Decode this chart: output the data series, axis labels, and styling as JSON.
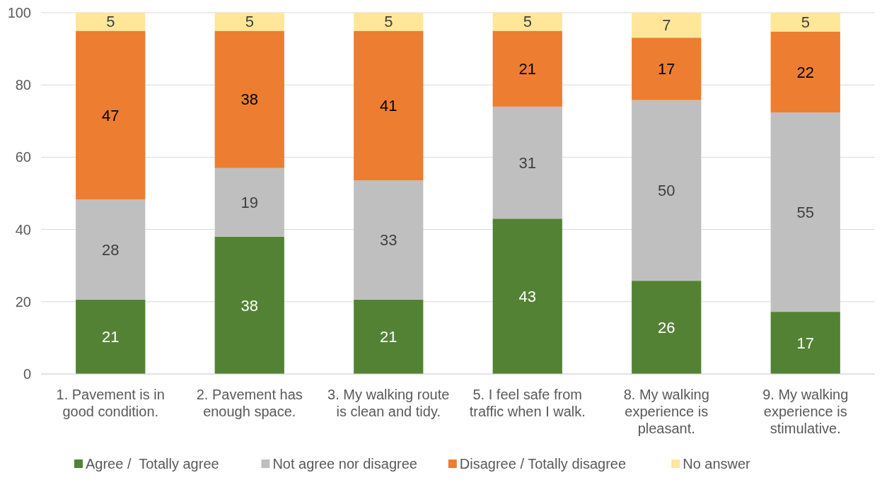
{
  "chart_data": {
    "type": "bar",
    "stacked": true,
    "categories": [
      "1. Pavement is in good condition.",
      "2. Pavement has enough space.",
      "3. My walking route is clean and tidy.",
      "5. I feel safe from traffic when I walk.",
      "8. My walking experience is pleasant.",
      "9. My walking experience is stimulative."
    ],
    "series": [
      {
        "name": "Agree /  Totally agree",
        "color": "#548235",
        "values": [
          20.6,
          38,
          20.6,
          43,
          25.8,
          17.2
        ],
        "value_labels": [
          "21",
          "38",
          "21",
          "43",
          "26",
          "17"
        ]
      },
      {
        "name": "Not agree nor disagree",
        "color": "#bfbfbf",
        "values": [
          27.7,
          19,
          33,
          31,
          50,
          55.2
        ],
        "value_labels": [
          "28",
          "19",
          "33",
          "31",
          "50",
          "55"
        ]
      },
      {
        "name": "Disagree / Totally disagree",
        "color": "#ed7d31",
        "values": [
          46.7,
          38,
          41.4,
          21,
          17.3,
          22.4
        ],
        "value_labels": [
          "47",
          "38",
          "41",
          "21",
          "17",
          "22"
        ]
      },
      {
        "name": "No answer",
        "color": "#ffe699",
        "values": [
          5,
          5,
          5,
          5,
          6.9,
          5.2
        ],
        "value_labels": [
          "5",
          "5",
          "5",
          "5",
          "7",
          "5"
        ]
      }
    ],
    "ylim": [
      0,
      100
    ],
    "yticks": [
      0,
      20,
      40,
      60,
      80,
      100
    ],
    "grid": "y",
    "legend": "bottom"
  }
}
